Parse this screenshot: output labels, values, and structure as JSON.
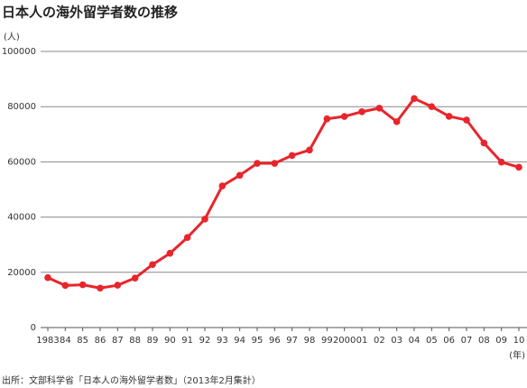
{
  "chart_data": {
    "type": "line",
    "title": "日本人の海外留学者数の推移",
    "y_axis_label": "(人)",
    "x_axis_label": "(年)",
    "source": "出所：文部科学省「日本人の海外留学者数」（2013年2月集計）",
    "categories": [
      "1983",
      "84",
      "85",
      "86",
      "87",
      "88",
      "89",
      "90",
      "91",
      "92",
      "93",
      "94",
      "95",
      "96",
      "97",
      "98",
      "99",
      "2000",
      "01",
      "02",
      "03",
      "04",
      "05",
      "06",
      "07",
      "08",
      "09",
      "10"
    ],
    "series": [
      {
        "color": "#e8252b",
        "values": [
          18066,
          15246,
          15485,
          14297,
          15335,
          17926,
          22798,
          26893,
          32609,
          39258,
          51295,
          55145,
          59460,
          59468,
          62324,
          64284,
          75586,
          76464,
          78151,
          79455,
          74551,
          82945,
          80023,
          76492,
          75156,
          66833,
          59923,
          58060
        ]
      }
    ],
    "ylim": [
      0,
      100000
    ],
    "yticks": [
      0,
      20000,
      40000,
      60000,
      80000,
      100000
    ],
    "grid": true
  }
}
